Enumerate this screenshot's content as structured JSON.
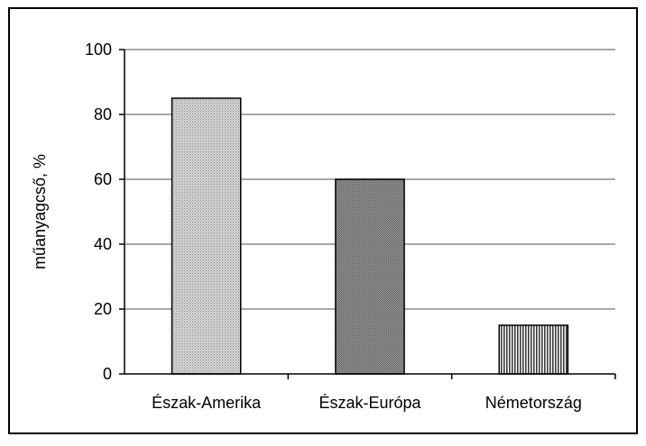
{
  "chart_data": {
    "type": "bar",
    "title": "",
    "xlabel": "",
    "ylabel": "műanyagcső, %",
    "categories": [
      "Észak-Amerika",
      "Észak-Európa",
      "Németország"
    ],
    "values": [
      85,
      60,
      15
    ],
    "ylim": [
      0,
      100
    ],
    "yticks": [
      "0",
      "20",
      "40",
      "60",
      "80",
      "100"
    ],
    "grid": true,
    "legend": "none",
    "bar_fills": [
      "#c8c8c8",
      "#8c8c8c",
      "#b4b4b4"
    ],
    "bar_patterns": [
      "dots",
      "dots-dense",
      "vertical-stripes"
    ]
  }
}
